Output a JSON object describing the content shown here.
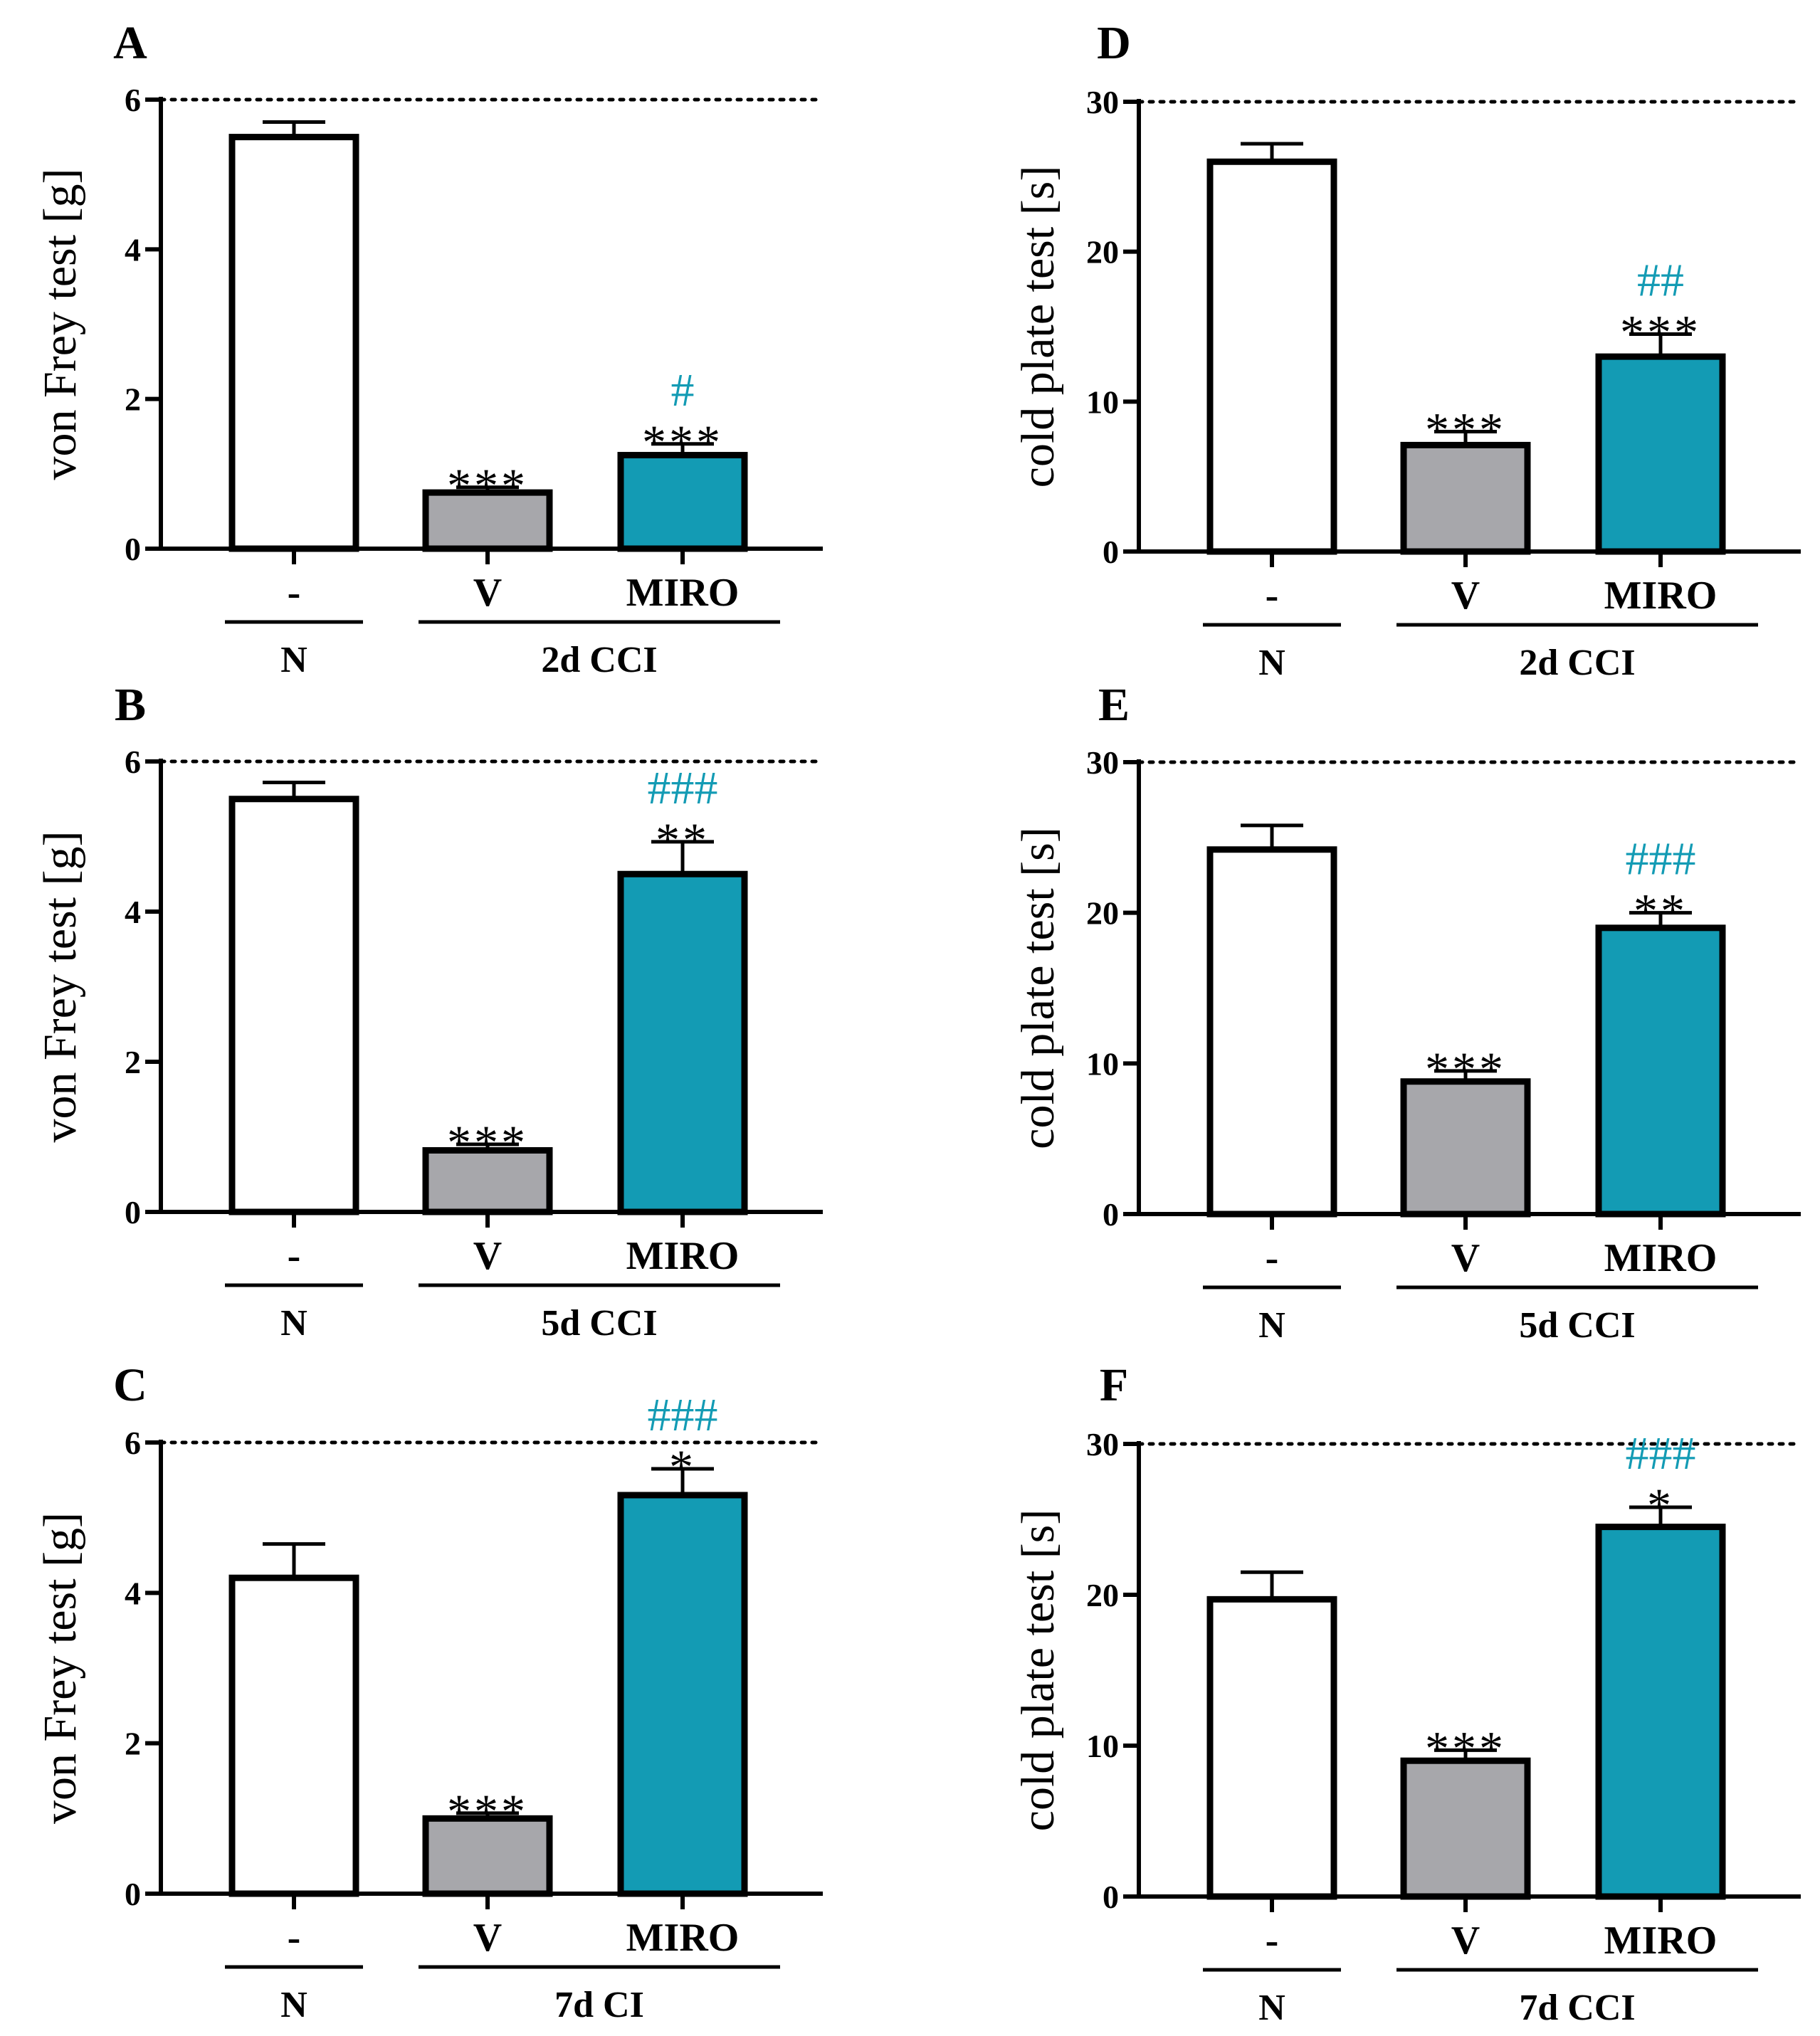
{
  "figure": {
    "background": "#ffffff"
  },
  "chart_data": [
    {
      "panel": "A",
      "type": "bar",
      "ylabel": "von Frey test [g]",
      "ylim": [
        0,
        6
      ],
      "yticks": [
        0,
        2,
        4,
        6
      ],
      "reference_line": 6,
      "categories": [
        "-",
        "V",
        "MIRO"
      ],
      "values": [
        5.5,
        0.75,
        1.25
      ],
      "errors": [
        0.2,
        0.07,
        0.15
      ],
      "colors": [
        "#ffffff",
        "#a7a7ab",
        "#139bb4"
      ],
      "stars": [
        "",
        "***",
        "***"
      ],
      "hashes": [
        "",
        "",
        "#"
      ],
      "groups": [
        {
          "label": "N",
          "from": 0,
          "to": 0
        },
        {
          "label": "2d CCI",
          "from": 1,
          "to": 2
        }
      ]
    },
    {
      "panel": "B",
      "type": "bar",
      "ylabel": "von Frey test [g]",
      "ylim": [
        0,
        6
      ],
      "yticks": [
        0,
        2,
        4,
        6
      ],
      "reference_line": 6,
      "categories": [
        "-",
        "V",
        "MIRO"
      ],
      "values": [
        5.5,
        0.82,
        4.5
      ],
      "errors": [
        0.22,
        0.08,
        0.43
      ],
      "colors": [
        "#ffffff",
        "#a7a7ab",
        "#139bb4"
      ],
      "stars": [
        "",
        "***",
        "**"
      ],
      "hashes": [
        "",
        "",
        "###"
      ],
      "groups": [
        {
          "label": "N",
          "from": 0,
          "to": 0
        },
        {
          "label": "5d CCI",
          "from": 1,
          "to": 2
        }
      ]
    },
    {
      "panel": "C",
      "type": "bar",
      "ylabel": "von Frey test [g]",
      "ylim": [
        0,
        6
      ],
      "yticks": [
        0,
        2,
        4,
        6
      ],
      "reference_line": 6,
      "categories": [
        "-",
        "V",
        "MIRO"
      ],
      "values": [
        4.2,
        1.0,
        5.3
      ],
      "errors": [
        0.45,
        0.07,
        0.35
      ],
      "colors": [
        "#ffffff",
        "#a7a7ab",
        "#139bb4"
      ],
      "stars": [
        "",
        "***",
        "*"
      ],
      "hashes": [
        "",
        "",
        "###"
      ],
      "groups": [
        {
          "label": "N",
          "from": 0,
          "to": 0
        },
        {
          "label": "7d CI",
          "from": 1,
          "to": 2
        }
      ]
    },
    {
      "panel": "D",
      "type": "bar",
      "ylabel": "cold plate test [s]",
      "ylim": [
        0,
        30
      ],
      "yticks": [
        0,
        10,
        20,
        30
      ],
      "reference_line": 30,
      "categories": [
        "-",
        "V",
        "MIRO"
      ],
      "values": [
        26,
        7.1,
        13
      ],
      "errors": [
        1.2,
        0.9,
        1.5
      ],
      "colors": [
        "#ffffff",
        "#a7a7ab",
        "#139bb4"
      ],
      "stars": [
        "",
        "***",
        "***"
      ],
      "hashes": [
        "",
        "",
        "##"
      ],
      "groups": [
        {
          "label": "N",
          "from": 0,
          "to": 0
        },
        {
          "label": "2d CCI",
          "from": 1,
          "to": 2
        }
      ]
    },
    {
      "panel": "E",
      "type": "bar",
      "ylabel": "cold plate test [s]",
      "ylim": [
        0,
        30
      ],
      "yticks": [
        0,
        10,
        20,
        30
      ],
      "reference_line": 30,
      "categories": [
        "-",
        "V",
        "MIRO"
      ],
      "values": [
        24.2,
        8.8,
        19
      ],
      "errors": [
        1.6,
        0.7,
        1.0
      ],
      "colors": [
        "#ffffff",
        "#a7a7ab",
        "#139bb4"
      ],
      "stars": [
        "",
        "***",
        "**"
      ],
      "hashes": [
        "",
        "",
        "###"
      ],
      "groups": [
        {
          "label": "N",
          "from": 0,
          "to": 0
        },
        {
          "label": "5d CCI",
          "from": 1,
          "to": 2
        }
      ]
    },
    {
      "panel": "F",
      "type": "bar",
      "ylabel": "cold plate test [s]",
      "ylim": [
        0,
        30
      ],
      "yticks": [
        0,
        10,
        20,
        30
      ],
      "reference_line": 30,
      "categories": [
        "-",
        "V",
        "MIRO"
      ],
      "values": [
        19.7,
        9.0,
        24.5
      ],
      "errors": [
        1.8,
        0.7,
        1.3
      ],
      "colors": [
        "#ffffff",
        "#a7a7ab",
        "#139bb4"
      ],
      "stars": [
        "",
        "***",
        "*"
      ],
      "hashes": [
        "",
        "",
        "###"
      ],
      "groups": [
        {
          "label": "N",
          "from": 0,
          "to": 0
        },
        {
          "label": "7d CCI",
          "from": 1,
          "to": 2
        }
      ]
    }
  ],
  "style": {
    "axis_color": "#000000",
    "hash_color": "#139bb4",
    "star_color": "#000000"
  }
}
